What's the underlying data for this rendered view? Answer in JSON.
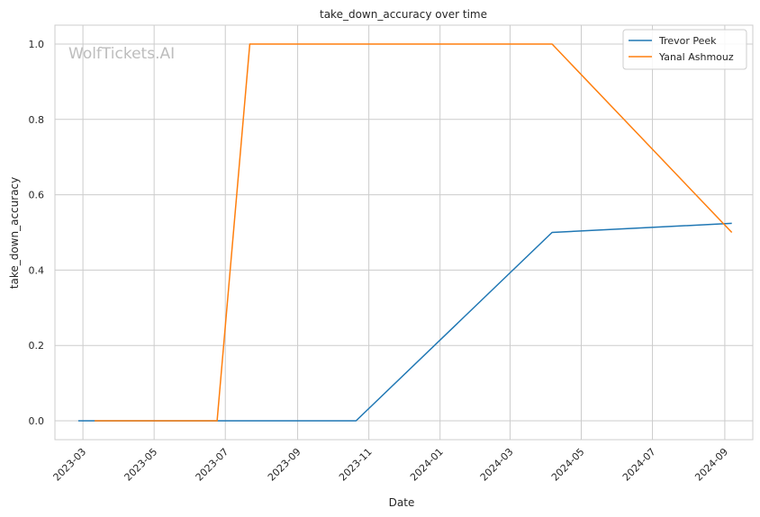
{
  "chart_data": {
    "type": "line",
    "title": "take_down_accuracy over time",
    "xlabel": "Date",
    "ylabel": "take_down_accuracy",
    "watermark": "WolfTickets.AI",
    "xlim": [
      "2023-02-05",
      "2024-09-25"
    ],
    "ylim": [
      -0.05,
      1.05
    ],
    "x_ticks": [
      "2023-03",
      "2023-05",
      "2023-07",
      "2023-09",
      "2023-11",
      "2024-01",
      "2024-03",
      "2024-05",
      "2024-07",
      "2024-09"
    ],
    "y_ticks": [
      "0.0",
      "0.2",
      "0.4",
      "0.6",
      "0.8",
      "1.0"
    ],
    "grid": true,
    "legend": "top-right",
    "series": [
      {
        "name": "Trevor Peek",
        "color": "#1f77b4",
        "points": [
          {
            "x": "2023-02-25",
            "y": 0.0
          },
          {
            "x": "2023-10-21",
            "y": 0.0
          },
          {
            "x": "2024-04-06",
            "y": 0.5
          },
          {
            "x": "2024-09-07",
            "y": 0.524
          }
        ]
      },
      {
        "name": "Yanal Ashmouz",
        "color": "#ff7f0e",
        "points": [
          {
            "x": "2023-03-11",
            "y": 0.0
          },
          {
            "x": "2023-06-24",
            "y": 0.0
          },
          {
            "x": "2023-07-22",
            "y": 1.0
          },
          {
            "x": "2024-04-06",
            "y": 1.0
          },
          {
            "x": "2024-09-07",
            "y": 0.5
          }
        ]
      }
    ]
  }
}
